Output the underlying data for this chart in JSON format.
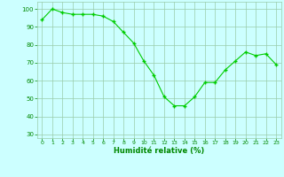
{
  "x": [
    0,
    1,
    2,
    3,
    4,
    5,
    6,
    7,
    8,
    9,
    10,
    11,
    12,
    13,
    14,
    15,
    16,
    17,
    18,
    19,
    20,
    21,
    22,
    23
  ],
  "y": [
    94,
    100,
    98,
    97,
    97,
    97,
    96,
    93,
    87,
    81,
    71,
    63,
    51,
    46,
    46,
    51,
    59,
    59,
    66,
    71,
    76,
    74,
    75,
    69
  ],
  "line_color": "#00cc00",
  "marker_color": "#00cc00",
  "bg_color": "#ccffff",
  "grid_color": "#99ccaa",
  "xlabel": "Humidité relative (%)",
  "xlabel_color": "#008800",
  "tick_color": "#008800",
  "ylim": [
    28,
    104
  ],
  "xlim": [
    -0.5,
    23.5
  ],
  "yticks": [
    30,
    40,
    50,
    60,
    70,
    80,
    90,
    100
  ],
  "xticks": [
    0,
    1,
    2,
    3,
    4,
    5,
    6,
    7,
    8,
    9,
    10,
    11,
    12,
    13,
    14,
    15,
    16,
    17,
    18,
    19,
    20,
    21,
    22,
    23
  ]
}
